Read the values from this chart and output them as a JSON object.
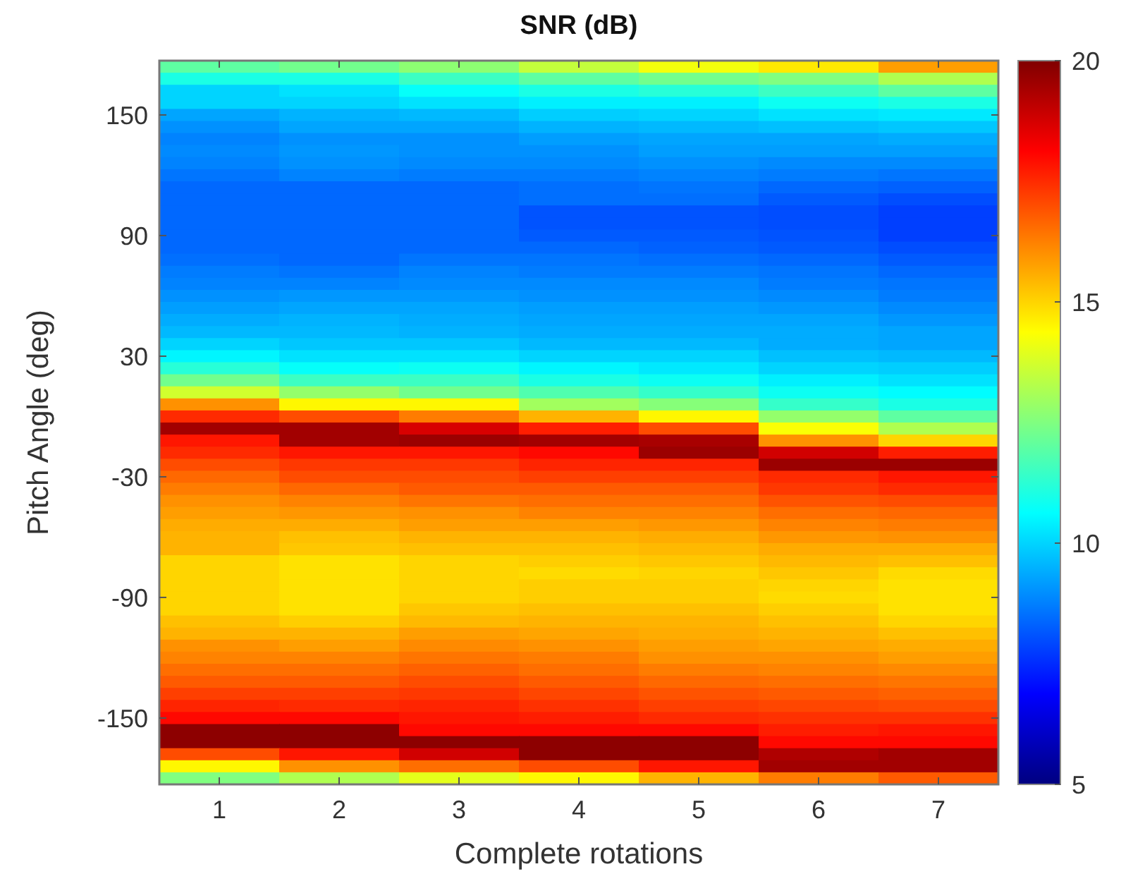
{
  "chart_data": {
    "type": "heatmap",
    "title": "SNR (dB)",
    "xlabel": "Complete rotations",
    "ylabel": "Pitch Angle (deg)",
    "categories": [
      "1",
      "2",
      "3",
      "4",
      "5",
      "6",
      "7"
    ],
    "y_categories": [
      null,
      null,
      null,
      null,
      "150",
      null,
      null,
      null,
      null,
      null,
      null,
      null,
      null,
      null,
      "90",
      null,
      null,
      null,
      null,
      null,
      null,
      null,
      null,
      null,
      "30",
      null,
      null,
      null,
      null,
      null,
      null,
      null,
      null,
      null,
      "-30",
      null,
      null,
      null,
      null,
      null,
      null,
      null,
      null,
      null,
      "-90",
      null,
      null,
      null,
      null,
      null,
      null,
      null,
      null,
      null,
      "-150",
      null,
      null,
      null,
      null,
      null
    ],
    "clim": [
      5,
      20
    ],
    "cticks": [
      5,
      10,
      15,
      20
    ],
    "cells": [
      [
        12,
        12.3,
        12.7,
        13.5,
        14.2,
        14.7,
        15.8
      ],
      [
        11,
        11,
        11.5,
        12,
        12.3,
        12.5,
        13.2
      ],
      [
        10,
        10.2,
        10.7,
        11,
        11.2,
        11.5,
        12
      ],
      [
        10,
        10,
        10.2,
        10.4,
        10.4,
        10.8,
        11
      ],
      [
        9.3,
        9.5,
        9.6,
        9.9,
        10,
        10.2,
        10.3
      ],
      [
        9,
        9.3,
        9.3,
        9.5,
        9.6,
        9.7,
        9.8
      ],
      [
        8.8,
        9,
        9,
        9.2,
        9.3,
        9.3,
        9.4
      ],
      [
        8.9,
        9.1,
        9,
        9,
        9.2,
        9.2,
        9.2
      ],
      [
        8.8,
        9,
        8.9,
        8.9,
        9,
        8.9,
        8.9
      ],
      [
        8.6,
        8.8,
        8.7,
        8.7,
        8.8,
        8.7,
        8.6
      ],
      [
        8.4,
        8.4,
        8.4,
        8.5,
        8.6,
        8.4,
        8.3
      ],
      [
        8.4,
        8.4,
        8.4,
        8.5,
        8.5,
        8.2,
        8
      ],
      [
        8.4,
        8.4,
        8.4,
        8.1,
        8.1,
        8,
        7.8
      ],
      [
        8.4,
        8.4,
        8.4,
        8.1,
        8.1,
        8,
        7.8
      ],
      [
        8.4,
        8.4,
        8.4,
        8.2,
        8.2,
        8.1,
        7.8
      ],
      [
        8.4,
        8.4,
        8.4,
        8.4,
        8.3,
        8.2,
        8
      ],
      [
        8.5,
        8.4,
        8.6,
        8.6,
        8.5,
        8.4,
        8.2
      ],
      [
        8.7,
        8.6,
        8.8,
        8.7,
        8.7,
        8.6,
        8.4
      ],
      [
        8.8,
        8.8,
        8.9,
        8.9,
        8.9,
        8.7,
        8.6
      ],
      [
        9,
        9.1,
        9.1,
        9,
        9,
        8.9,
        8.7
      ],
      [
        9.2,
        9.3,
        9.3,
        9.2,
        9.2,
        9.1,
        8.9
      ],
      [
        9.4,
        9.5,
        9.4,
        9.3,
        9.3,
        9.3,
        9.1
      ],
      [
        9.6,
        9.6,
        9.5,
        9.4,
        9.4,
        9.4,
        9.3
      ],
      [
        10,
        9.8,
        9.8,
        9.6,
        9.6,
        9.4,
        9.3
      ],
      [
        10.5,
        10.2,
        10.2,
        10,
        10,
        9.7,
        9.6
      ],
      [
        11.2,
        10.7,
        10.8,
        10.5,
        10.3,
        10,
        9.9
      ],
      [
        12.3,
        11.5,
        11.5,
        11,
        10.8,
        10.4,
        10.2
      ],
      [
        13.7,
        12.8,
        12.3,
        11.8,
        11.4,
        10.8,
        10.6
      ],
      [
        16,
        14.5,
        14.5,
        13,
        12.6,
        11.4,
        11
      ],
      [
        17.5,
        17,
        16.3,
        15.5,
        14.5,
        12.8,
        12
      ],
      [
        19.5,
        19.5,
        18.7,
        17.7,
        17,
        14.3,
        13.2
      ],
      [
        17.8,
        19.5,
        19.6,
        19.5,
        19.4,
        16,
        15
      ],
      [
        17.5,
        17.8,
        17.8,
        18,
        19.6,
        18.8,
        17.7
      ],
      [
        17,
        17.3,
        17.3,
        17.6,
        17.6,
        19.6,
        19.6
      ],
      [
        16.6,
        17,
        17,
        17.2,
        17.2,
        17.5,
        17.8
      ],
      [
        16.3,
        16.6,
        16.8,
        16.8,
        16.8,
        17.3,
        17.5
      ],
      [
        16,
        16.2,
        16.4,
        16.5,
        16.5,
        16.9,
        17
      ],
      [
        15.8,
        15.9,
        16,
        16.2,
        16.2,
        16.5,
        16.6
      ],
      [
        15.6,
        15.6,
        15.8,
        15.8,
        15.9,
        16.2,
        16.3
      ],
      [
        15.5,
        15.3,
        15.5,
        15.5,
        15.6,
        15.9,
        16
      ],
      [
        15.5,
        15.2,
        15.3,
        15.3,
        15.4,
        15.6,
        15.6
      ],
      [
        15,
        14.8,
        15,
        15.1,
        15.2,
        15.4,
        15.3
      ],
      [
        15,
        14.8,
        15,
        14.9,
        15,
        15.2,
        14.9
      ],
      [
        15,
        14.8,
        15,
        15.1,
        15.1,
        15,
        14.8
      ],
      [
        15,
        14.8,
        15,
        15.1,
        15.1,
        14.9,
        14.8
      ],
      [
        15,
        14.8,
        15.2,
        15.3,
        15.3,
        15.1,
        14.8
      ],
      [
        15.3,
        15.1,
        15.4,
        15.5,
        15.5,
        15.3,
        15
      ],
      [
        15.5,
        15.5,
        15.8,
        15.7,
        15.6,
        15.5,
        15.3
      ],
      [
        16,
        15.8,
        16.1,
        16,
        15.8,
        15.7,
        15.6
      ],
      [
        16.2,
        16.2,
        16.4,
        16.3,
        16,
        16,
        15.8
      ],
      [
        16.5,
        16.5,
        16.7,
        16.5,
        16.3,
        16.2,
        16.1
      ],
      [
        16.8,
        16.8,
        17,
        16.8,
        16.6,
        16.5,
        16.4
      ],
      [
        17.2,
        17.2,
        17.3,
        17.1,
        16.9,
        16.8,
        16.7
      ],
      [
        17.6,
        17.5,
        17.6,
        17.4,
        17.2,
        17.1,
        17
      ],
      [
        18,
        18,
        17.8,
        17.7,
        17.5,
        17.4,
        17.4
      ],
      [
        19.8,
        19.8,
        18,
        18,
        18,
        17.7,
        17.8
      ],
      [
        19.8,
        19.8,
        19.8,
        19.8,
        19.8,
        18,
        18
      ],
      [
        17,
        17.8,
        18.8,
        19.8,
        19.8,
        19.3,
        19.5
      ],
      [
        14.5,
        16,
        16.5,
        17,
        17.8,
        19.5,
        19.5
      ],
      [
        12.5,
        13.2,
        14,
        14.5,
        15.5,
        16.3,
        16.8
      ]
    ]
  }
}
